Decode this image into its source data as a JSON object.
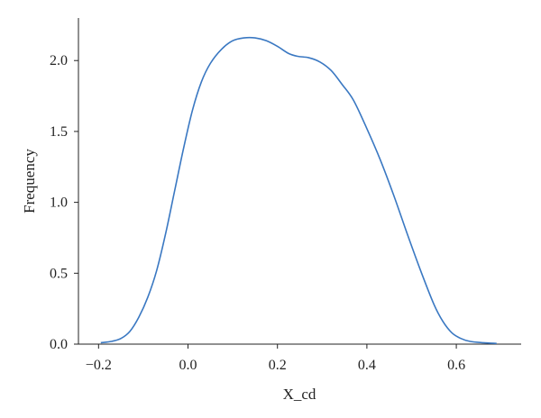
{
  "chart_data": {
    "type": "line",
    "title": "",
    "xlabel": "X_cd",
    "ylabel": "Frequency",
    "xlim": [
      -0.245,
      0.745
    ],
    "ylim": [
      0.0,
      2.3
    ],
    "grid": false,
    "line_color": "#3a78c2",
    "x_ticks": [
      {
        "value": -0.2,
        "label": "−0.2"
      },
      {
        "value": 0.0,
        "label": "0.0"
      },
      {
        "value": 0.2,
        "label": "0.2"
      },
      {
        "value": 0.4,
        "label": "0.4"
      },
      {
        "value": 0.6,
        "label": "0.6"
      }
    ],
    "y_ticks": [
      {
        "value": 0.0,
        "label": "0.0"
      },
      {
        "value": 0.5,
        "label": "0.5"
      },
      {
        "value": 1.0,
        "label": "1.0"
      },
      {
        "value": 1.5,
        "label": "1.5"
      },
      {
        "value": 2.0,
        "label": "2.0"
      }
    ],
    "series": [
      {
        "x": [
          -0.195,
          -0.17,
          -0.15,
          -0.13,
          -0.11,
          -0.09,
          -0.07,
          -0.05,
          -0.03,
          -0.01,
          0.01,
          0.03,
          0.05,
          0.075,
          0.1,
          0.125,
          0.15,
          0.175,
          0.2,
          0.225,
          0.245,
          0.27,
          0.295,
          0.32,
          0.345,
          0.37,
          0.4,
          0.43,
          0.46,
          0.49,
          0.52,
          0.55,
          0.57,
          0.59,
          0.61,
          0.63,
          0.66,
          0.69
        ],
        "y": [
          0.01,
          0.02,
          0.04,
          0.09,
          0.19,
          0.33,
          0.52,
          0.78,
          1.08,
          1.38,
          1.65,
          1.85,
          1.98,
          2.08,
          2.14,
          2.16,
          2.16,
          2.14,
          2.1,
          2.05,
          2.03,
          2.02,
          1.99,
          1.93,
          1.83,
          1.72,
          1.52,
          1.3,
          1.05,
          0.78,
          0.52,
          0.28,
          0.16,
          0.08,
          0.04,
          0.02,
          0.01,
          0.005
        ]
      }
    ]
  }
}
